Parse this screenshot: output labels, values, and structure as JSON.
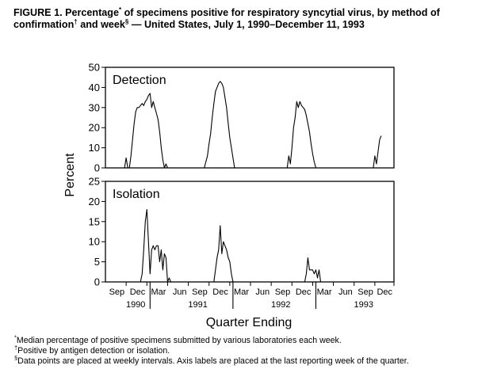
{
  "figure": {
    "title_parts": [
      "FIGURE 1. Percentage",
      "*",
      " of specimens positive for respiratory syncytial virus, by method of confirmation",
      "†",
      " and week",
      "§",
      " — United States, July 1, 1990–December 11, 1993"
    ]
  },
  "chart_data": {
    "type": "line",
    "ylabel": "Percent",
    "xlabel": "Quarter Ending",
    "x_unit": "weeks since July 1, 1990",
    "x_range": [
      0,
      181
    ],
    "quarter_ticks": [
      {
        "label": "Sep",
        "week": 13
      },
      {
        "label": "Dec",
        "week": 26
      },
      {
        "label": "Mar",
        "week": 39
      },
      {
        "label": "Jun",
        "week": 52
      },
      {
        "label": "Sep",
        "week": 65
      },
      {
        "label": "Dec",
        "week": 78
      },
      {
        "label": "Mar",
        "week": 91
      },
      {
        "label": "Jun",
        "week": 104
      },
      {
        "label": "Sep",
        "week": 117
      },
      {
        "label": "Dec",
        "week": 130
      },
      {
        "label": "Mar",
        "week": 143
      },
      {
        "label": "Jun",
        "week": 156
      },
      {
        "label": "Sep",
        "week": 169
      },
      {
        "label": "Dec",
        "week": 181
      }
    ],
    "year_labels": [
      {
        "label": "1990",
        "week": 19
      },
      {
        "label": "1991",
        "week": 58
      },
      {
        "label": "1992",
        "week": 110
      },
      {
        "label": "1993",
        "week": 162
      }
    ],
    "year_separators": [
      28,
      80,
      132
    ],
    "panels": [
      {
        "name": "Detection",
        "ylim": [
          0,
          50
        ],
        "yticks": [
          0,
          10,
          20,
          30,
          40,
          50
        ],
        "points": [
          [
            0,
            0
          ],
          [
            12,
            0
          ],
          [
            13,
            5
          ],
          [
            14,
            0
          ],
          [
            15,
            0
          ],
          [
            16,
            6
          ],
          [
            17,
            14
          ],
          [
            18,
            22
          ],
          [
            19,
            28
          ],
          [
            20,
            30
          ],
          [
            21,
            30
          ],
          [
            22,
            31
          ],
          [
            23,
            32
          ],
          [
            24,
            31
          ],
          [
            25,
            33
          ],
          [
            26,
            34
          ],
          [
            27,
            36
          ],
          [
            28,
            37
          ],
          [
            29,
            30
          ],
          [
            30,
            33
          ],
          [
            31,
            30
          ],
          [
            32,
            27
          ],
          [
            33,
            24
          ],
          [
            34,
            18
          ],
          [
            35,
            10
          ],
          [
            36,
            4
          ],
          [
            37,
            0
          ],
          [
            38,
            2
          ],
          [
            39,
            0
          ],
          [
            62,
            0
          ],
          [
            63,
            3
          ],
          [
            64,
            6
          ],
          [
            65,
            12
          ],
          [
            66,
            17
          ],
          [
            67,
            25
          ],
          [
            68,
            32
          ],
          [
            69,
            38
          ],
          [
            70,
            40
          ],
          [
            71,
            42
          ],
          [
            72,
            43
          ],
          [
            73,
            42
          ],
          [
            74,
            40
          ],
          [
            75,
            35
          ],
          [
            76,
            30
          ],
          [
            77,
            22
          ],
          [
            78,
            15
          ],
          [
            79,
            10
          ],
          [
            80,
            5
          ],
          [
            81,
            0
          ],
          [
            114,
            0
          ],
          [
            115,
            6
          ],
          [
            116,
            2
          ],
          [
            117,
            10
          ],
          [
            118,
            20
          ],
          [
            119,
            25
          ],
          [
            120,
            33
          ],
          [
            121,
            30
          ],
          [
            122,
            33
          ],
          [
            123,
            31
          ],
          [
            124,
            30
          ],
          [
            125,
            29
          ],
          [
            126,
            26
          ],
          [
            127,
            22
          ],
          [
            128,
            18
          ],
          [
            129,
            12
          ],
          [
            130,
            7
          ],
          [
            131,
            3
          ],
          [
            132,
            0
          ],
          [
            168,
            0
          ],
          [
            169,
            6
          ],
          [
            170,
            2
          ],
          [
            171,
            8
          ],
          [
            172,
            14
          ],
          [
            173,
            16
          ]
        ]
      },
      {
        "name": "Isolation",
        "ylim": [
          0,
          25
        ],
        "yticks": [
          0,
          5,
          10,
          15,
          20,
          25
        ],
        "points": [
          [
            0,
            0
          ],
          [
            22,
            0
          ],
          [
            23,
            2
          ],
          [
            24,
            8
          ],
          [
            25,
            15
          ],
          [
            26,
            18
          ],
          [
            27,
            10
          ],
          [
            28,
            2
          ],
          [
            29,
            8
          ],
          [
            30,
            9
          ],
          [
            31,
            8
          ],
          [
            32,
            9
          ],
          [
            33,
            9
          ],
          [
            34,
            5
          ],
          [
            35,
            8
          ],
          [
            36,
            3
          ],
          [
            37,
            7
          ],
          [
            38,
            6
          ],
          [
            39,
            0
          ],
          [
            40,
            1
          ],
          [
            41,
            0
          ],
          [
            68,
            0
          ],
          [
            69,
            3
          ],
          [
            70,
            6
          ],
          [
            71,
            8
          ],
          [
            72,
            14
          ],
          [
            73,
            7
          ],
          [
            74,
            10
          ],
          [
            75,
            9
          ],
          [
            76,
            8
          ],
          [
            77,
            6
          ],
          [
            78,
            5
          ],
          [
            79,
            2
          ],
          [
            80,
            0
          ],
          [
            125,
            0
          ],
          [
            126,
            2
          ],
          [
            127,
            6
          ],
          [
            128,
            3
          ],
          [
            129,
            3
          ],
          [
            130,
            3
          ],
          [
            131,
            2
          ],
          [
            132,
            3
          ],
          [
            133,
            1
          ],
          [
            134,
            3
          ],
          [
            135,
            0
          ],
          [
            136,
            0
          ],
          [
            181,
            0
          ]
        ]
      }
    ]
  },
  "footnotes": [
    {
      "mark": "*",
      "text": "Median percentage of positive specimens submitted by various laboratories each week."
    },
    {
      "mark": "†",
      "text": "Positive by antigen detection or isolation."
    },
    {
      "mark": "§",
      "text": "Data points are placed at weekly intervals. Axis labels are placed at the last reporting week of the quarter."
    }
  ]
}
